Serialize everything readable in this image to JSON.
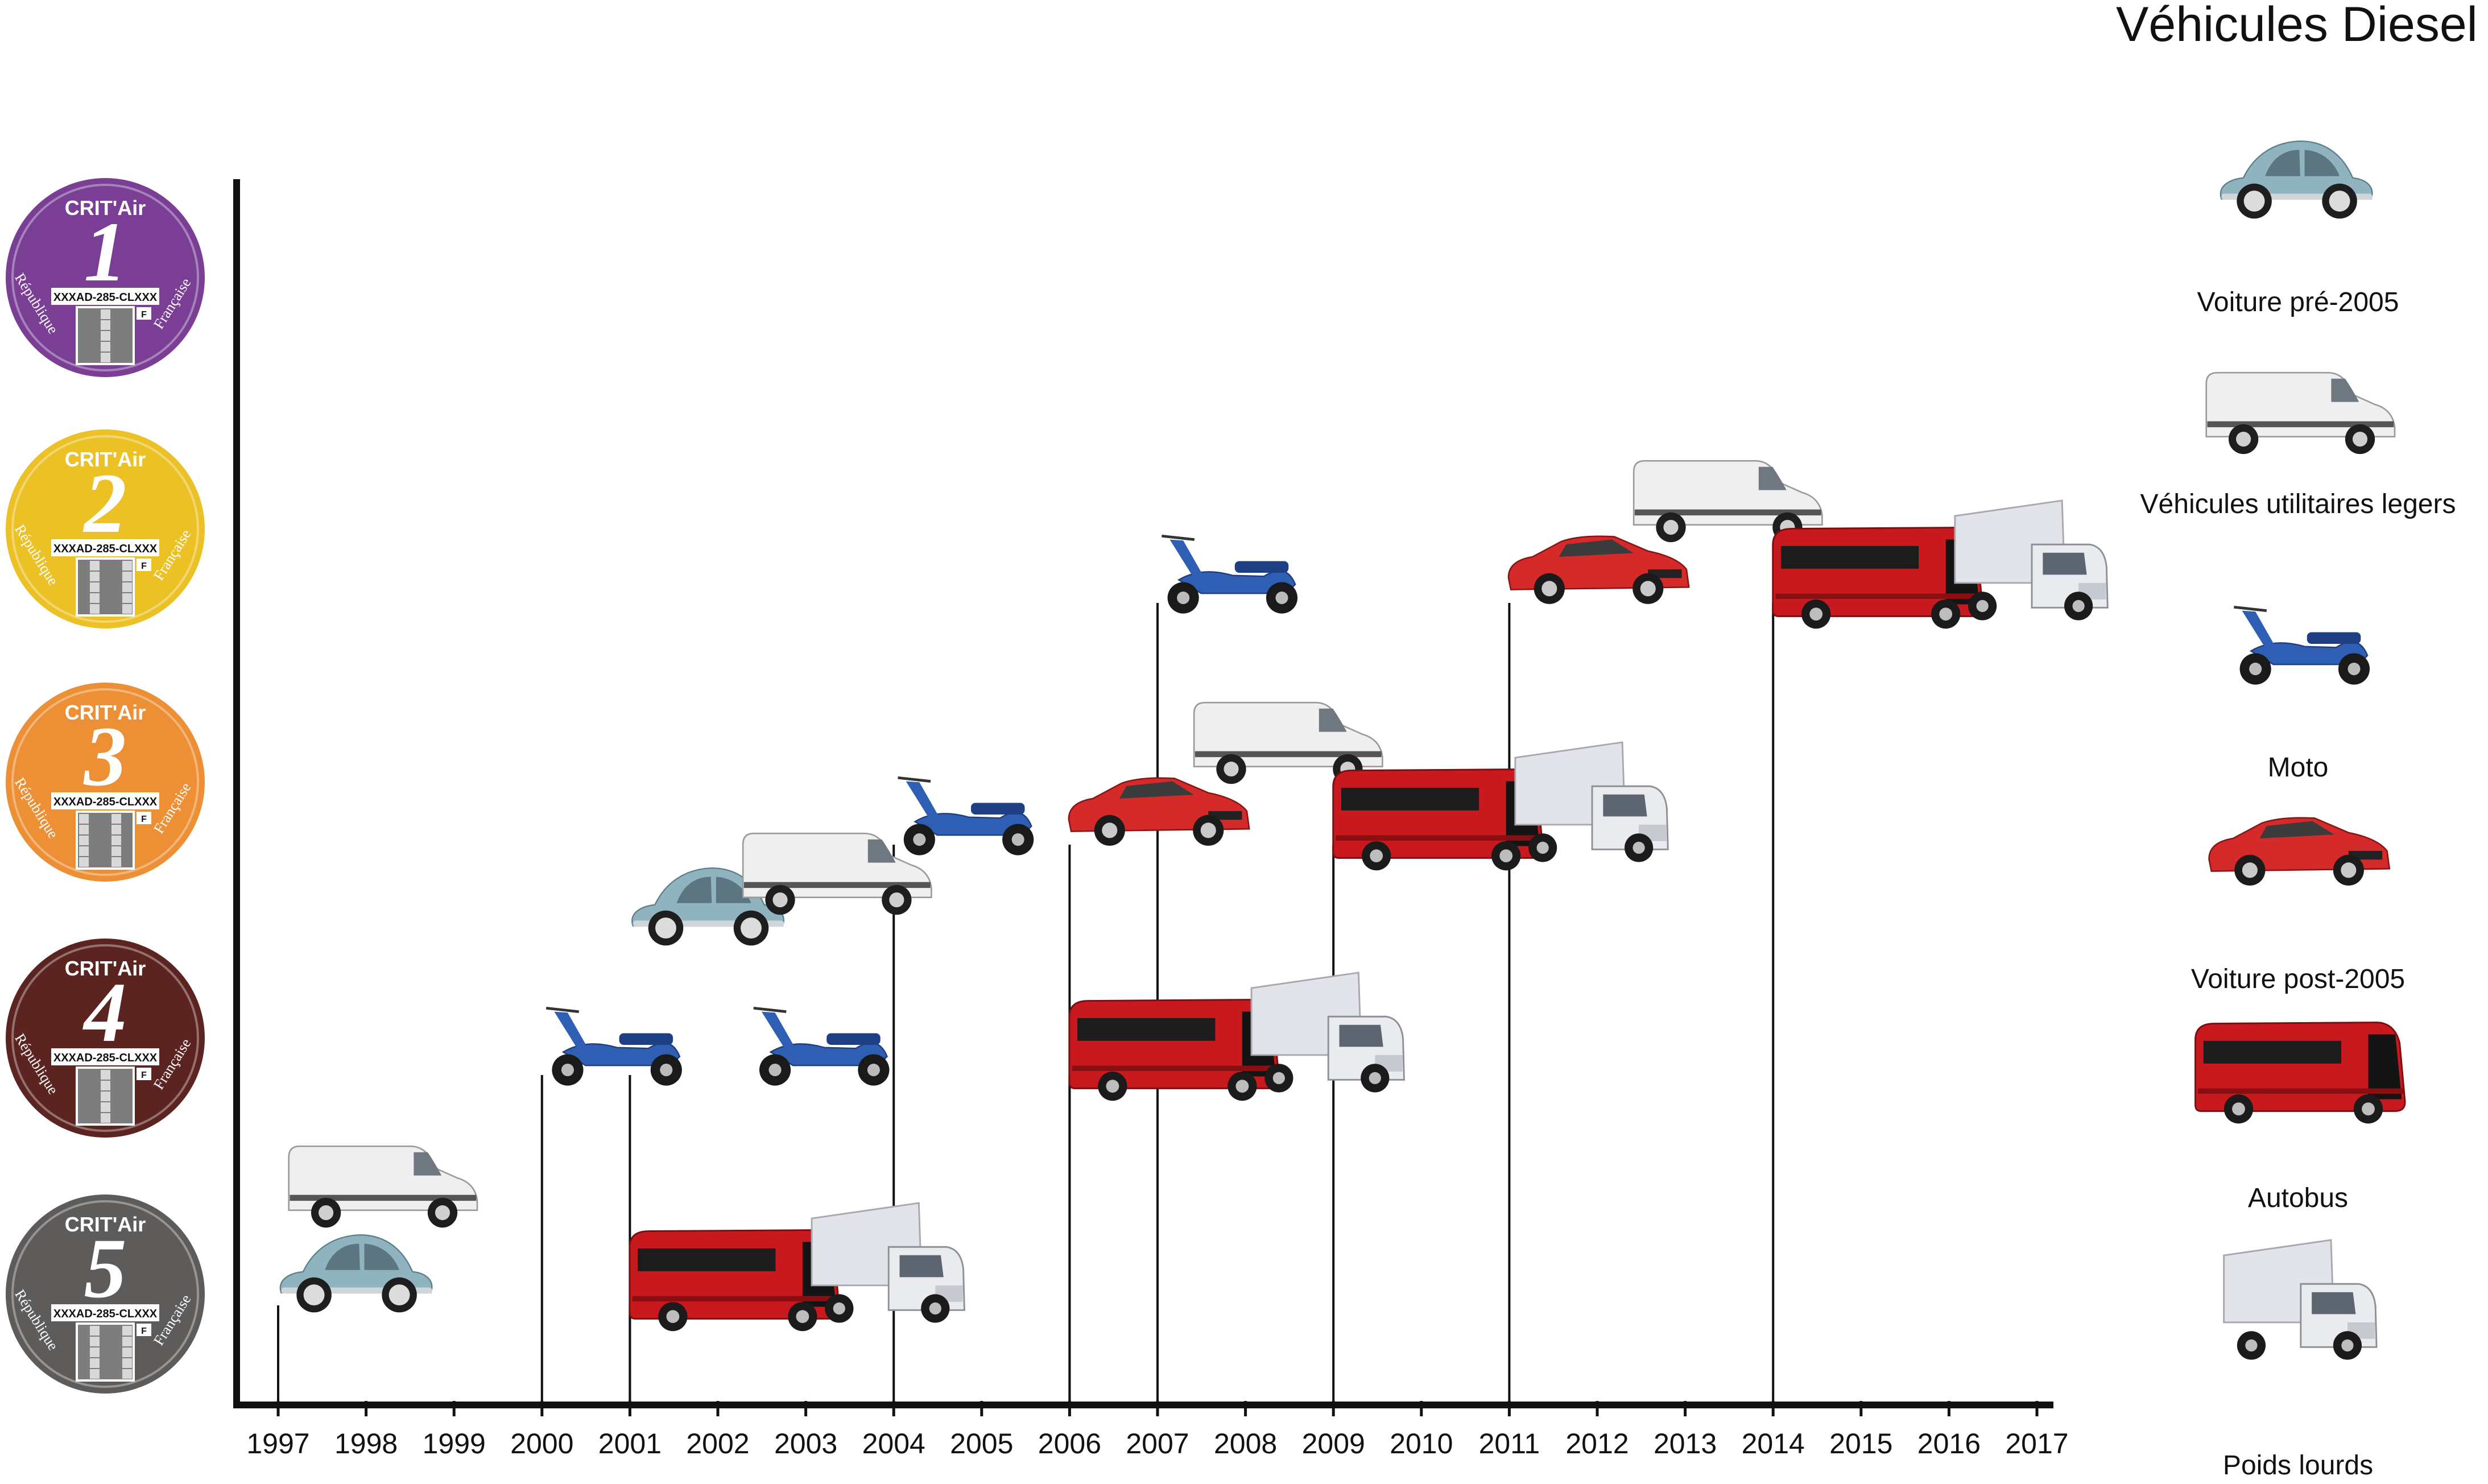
{
  "title": "Véhicules Diesel",
  "colors": {
    "crit1": "#7a3f95",
    "crit2": "#ecc126",
    "crit3": "#ec8f35",
    "crit4": "#5b2421",
    "crit5": "#5e5c5a",
    "beetle": "#8fb3bf",
    "van": "#efefef",
    "scooter": "#2f5fb4",
    "car_red": "#d42a2a",
    "bus_red": "#c8191e",
    "truck": "#e2e4e9"
  },
  "badges": [
    {
      "level": "1",
      "brand": "CRIT'Air",
      "plate": "XXXAD-285-CLXXX",
      "left_text": "République",
      "right_text": "Française",
      "flag": "F"
    },
    {
      "level": "2",
      "brand": "CRIT'Air",
      "plate": "XXXAD-285-CLXXX",
      "left_text": "République",
      "right_text": "Française",
      "flag": "F"
    },
    {
      "level": "3",
      "brand": "CRIT'Air",
      "plate": "XXXAD-285-CLXXX",
      "left_text": "République",
      "right_text": "Française",
      "flag": "F"
    },
    {
      "level": "4",
      "brand": "CRIT'Air",
      "plate": "XXXAD-285-CLXXX",
      "left_text": "République",
      "right_text": "Française",
      "flag": "F"
    },
    {
      "level": "5",
      "brand": "CRIT'Air",
      "plate": "XXXAD-285-CLXXX",
      "left_text": "République",
      "right_text": "Française",
      "flag": "F"
    }
  ],
  "years": [
    "1997",
    "1998",
    "1999",
    "2000",
    "2001",
    "2002",
    "2003",
    "2004",
    "2005",
    "2006",
    "2007",
    "2008",
    "2009",
    "2010",
    "2011",
    "2012",
    "2013",
    "2014",
    "2015",
    "2016",
    "2017"
  ],
  "legend": [
    {
      "type": "beetle",
      "label": "Voiture pré-2005"
    },
    {
      "type": "van",
      "label": "Véhicules utilitaires legers"
    },
    {
      "type": "scooter",
      "label": "Moto"
    },
    {
      "type": "car",
      "label": "Voiture post-2005"
    },
    {
      "type": "bus",
      "label": "Autobus"
    },
    {
      "type": "truck",
      "label": "Poids lourds"
    }
  ],
  "milestones": [
    {
      "year": "1997",
      "level": "5",
      "vehicles": [
        "van",
        "beetle"
      ]
    },
    {
      "year": "2000",
      "level": "4",
      "vehicles": [
        "scooter"
      ]
    },
    {
      "year": "2001",
      "level": "5",
      "vehicles": [
        "bus",
        "truck"
      ]
    },
    {
      "year": "2001",
      "level": "4",
      "vehicles": [
        "beetle",
        "van",
        "scooter"
      ]
    },
    {
      "year": "2004",
      "level": "3",
      "vehicles": [
        "scooter"
      ]
    },
    {
      "year": "2006",
      "level": "3",
      "vehicles": [
        "car",
        "van"
      ]
    },
    {
      "year": "2006",
      "level": "4",
      "vehicles": [
        "bus",
        "truck"
      ]
    },
    {
      "year": "2007",
      "level": "2",
      "vehicles": [
        "scooter"
      ]
    },
    {
      "year": "2009",
      "level": "3",
      "vehicles": [
        "bus",
        "truck"
      ]
    },
    {
      "year": "2011",
      "level": "2",
      "vehicles": [
        "car",
        "van"
      ]
    },
    {
      "year": "2014",
      "level": "2",
      "vehicles": [
        "bus",
        "truck"
      ]
    }
  ]
}
